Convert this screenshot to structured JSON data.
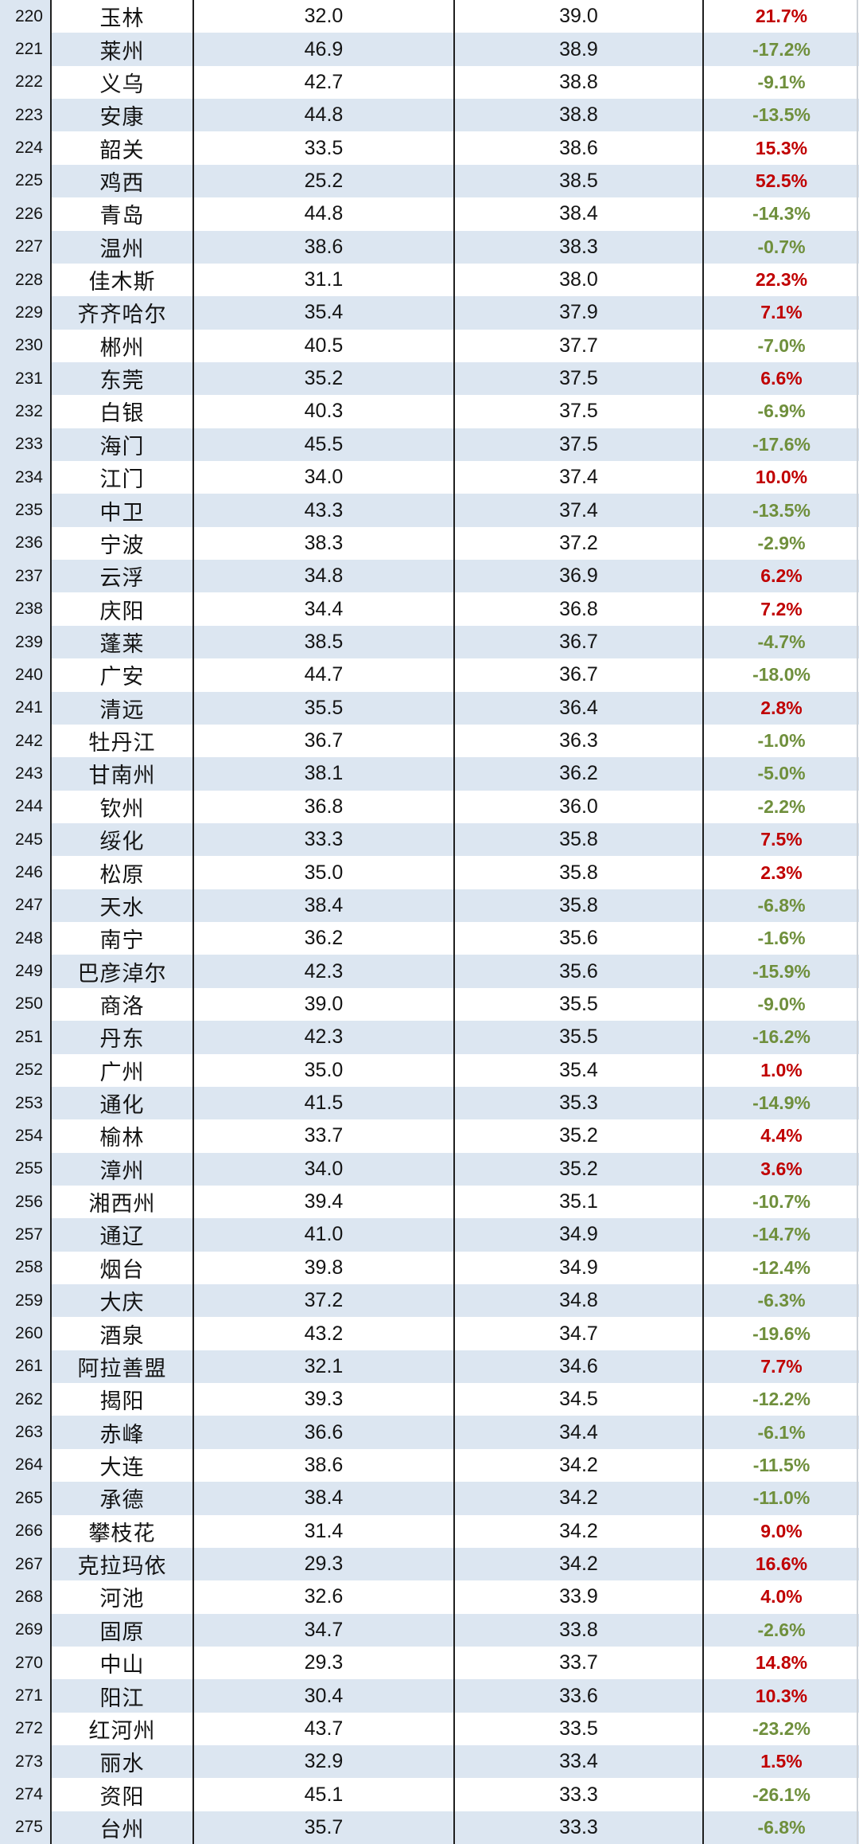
{
  "page": {
    "kind": "city-ranking-table",
    "visible_rank_range": [
      220,
      275
    ]
  },
  "colors": {
    "row_alternate_fill": "#dce6f1",
    "rank_column_fill": "#dce6f1",
    "grid_line": "#1f1f1f",
    "positive_change": "#c00000",
    "negative_change": "#6f8f3c",
    "value_text": "#141414"
  },
  "chart_data": {
    "type": "table",
    "title": "",
    "columns": [
      "rank",
      "city",
      "value_col_1",
      "value_col_2",
      "change_percent"
    ],
    "rows": [
      [
        "220",
        "玉林",
        "32.0",
        "39.0",
        "21.7%"
      ],
      [
        "221",
        "莱州",
        "46.9",
        "38.9",
        "-17.2%"
      ],
      [
        "222",
        "义乌",
        "42.7",
        "38.8",
        "-9.1%"
      ],
      [
        "223",
        "安康",
        "44.8",
        "38.8",
        "-13.5%"
      ],
      [
        "224",
        "韶关",
        "33.5",
        "38.6",
        "15.3%"
      ],
      [
        "225",
        "鸡西",
        "25.2",
        "38.5",
        "52.5%"
      ],
      [
        "226",
        "青岛",
        "44.8",
        "38.4",
        "-14.3%"
      ],
      [
        "227",
        "温州",
        "38.6",
        "38.3",
        "-0.7%"
      ],
      [
        "228",
        "佳木斯",
        "31.1",
        "38.0",
        "22.3%"
      ],
      [
        "229",
        "齐齐哈尔",
        "35.4",
        "37.9",
        "7.1%"
      ],
      [
        "230",
        "郴州",
        "40.5",
        "37.7",
        "-7.0%"
      ],
      [
        "231",
        "东莞",
        "35.2",
        "37.5",
        "6.6%"
      ],
      [
        "232",
        "白银",
        "40.3",
        "37.5",
        "-6.9%"
      ],
      [
        "233",
        "海门",
        "45.5",
        "37.5",
        "-17.6%"
      ],
      [
        "234",
        "江门",
        "34.0",
        "37.4",
        "10.0%"
      ],
      [
        "235",
        "中卫",
        "43.3",
        "37.4",
        "-13.5%"
      ],
      [
        "236",
        "宁波",
        "38.3",
        "37.2",
        "-2.9%"
      ],
      [
        "237",
        "云浮",
        "34.8",
        "36.9",
        "6.2%"
      ],
      [
        "238",
        "庆阳",
        "34.4",
        "36.8",
        "7.2%"
      ],
      [
        "239",
        "蓬莱",
        "38.5",
        "36.7",
        "-4.7%"
      ],
      [
        "240",
        "广安",
        "44.7",
        "36.7",
        "-18.0%"
      ],
      [
        "241",
        "清远",
        "35.5",
        "36.4",
        "2.8%"
      ],
      [
        "242",
        "牡丹江",
        "36.7",
        "36.3",
        "-1.0%"
      ],
      [
        "243",
        "甘南州",
        "38.1",
        "36.2",
        "-5.0%"
      ],
      [
        "244",
        "钦州",
        "36.8",
        "36.0",
        "-2.2%"
      ],
      [
        "245",
        "绥化",
        "33.3",
        "35.8",
        "7.5%"
      ],
      [
        "246",
        "松原",
        "35.0",
        "35.8",
        "2.3%"
      ],
      [
        "247",
        "天水",
        "38.4",
        "35.8",
        "-6.8%"
      ],
      [
        "248",
        "南宁",
        "36.2",
        "35.6",
        "-1.6%"
      ],
      [
        "249",
        "巴彦淖尔",
        "42.3",
        "35.6",
        "-15.9%"
      ],
      [
        "250",
        "商洛",
        "39.0",
        "35.5",
        "-9.0%"
      ],
      [
        "251",
        "丹东",
        "42.3",
        "35.5",
        "-16.2%"
      ],
      [
        "252",
        "广州",
        "35.0",
        "35.4",
        "1.0%"
      ],
      [
        "253",
        "通化",
        "41.5",
        "35.3",
        "-14.9%"
      ],
      [
        "254",
        "榆林",
        "33.7",
        "35.2",
        "4.4%"
      ],
      [
        "255",
        "漳州",
        "34.0",
        "35.2",
        "3.6%"
      ],
      [
        "256",
        "湘西州",
        "39.4",
        "35.1",
        "-10.7%"
      ],
      [
        "257",
        "通辽",
        "41.0",
        "34.9",
        "-14.7%"
      ],
      [
        "258",
        "烟台",
        "39.8",
        "34.9",
        "-12.4%"
      ],
      [
        "259",
        "大庆",
        "37.2",
        "34.8",
        "-6.3%"
      ],
      [
        "260",
        "酒泉",
        "43.2",
        "34.7",
        "-19.6%"
      ],
      [
        "261",
        "阿拉善盟",
        "32.1",
        "34.6",
        "7.7%"
      ],
      [
        "262",
        "揭阳",
        "39.3",
        "34.5",
        "-12.2%"
      ],
      [
        "263",
        "赤峰",
        "36.6",
        "34.4",
        "-6.1%"
      ],
      [
        "264",
        "大连",
        "38.6",
        "34.2",
        "-11.5%"
      ],
      [
        "265",
        "承德",
        "38.4",
        "34.2",
        "-11.0%"
      ],
      [
        "266",
        "攀枝花",
        "31.4",
        "34.2",
        "9.0%"
      ],
      [
        "267",
        "克拉玛依",
        "29.3",
        "34.2",
        "16.6%"
      ],
      [
        "268",
        "河池",
        "32.6",
        "33.9",
        "4.0%"
      ],
      [
        "269",
        "固原",
        "34.7",
        "33.8",
        "-2.6%"
      ],
      [
        "270",
        "中山",
        "29.3",
        "33.7",
        "14.8%"
      ],
      [
        "271",
        "阳江",
        "30.4",
        "33.6",
        "10.3%"
      ],
      [
        "272",
        "红河州",
        "43.7",
        "33.5",
        "-23.2%"
      ],
      [
        "273",
        "丽水",
        "32.9",
        "33.4",
        "1.5%"
      ],
      [
        "274",
        "资阳",
        "45.1",
        "33.3",
        "-26.1%"
      ],
      [
        "275",
        "台州",
        "35.7",
        "33.3",
        "-6.8%"
      ]
    ]
  }
}
